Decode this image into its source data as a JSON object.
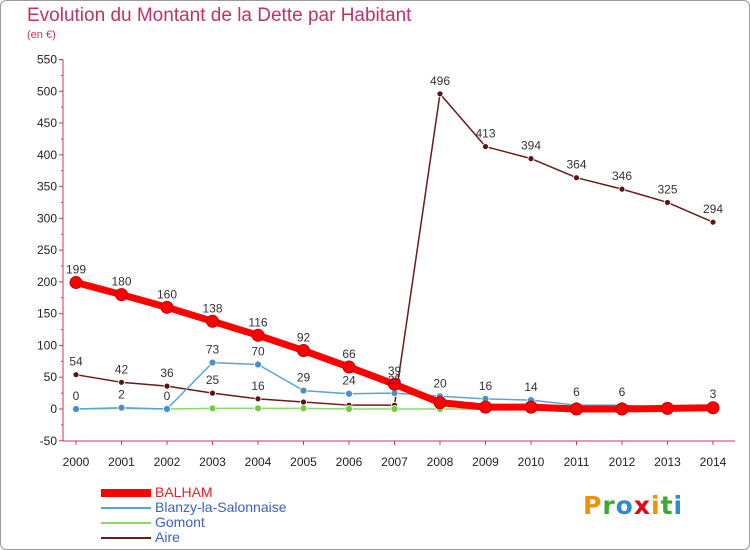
{
  "chart_data": {
    "type": "line",
    "title": "Evolution du Montant de la Dette par Habitant",
    "subtitle": "(en €)",
    "categories": [
      "2000",
      "2001",
      "2002",
      "2003",
      "2004",
      "2005",
      "2006",
      "2007",
      "2008",
      "2009",
      "2010",
      "2011",
      "2012",
      "2013",
      "2014"
    ],
    "ylim": [
      -50,
      550
    ],
    "yticks": [
      -50,
      0,
      50,
      100,
      150,
      200,
      250,
      300,
      350,
      400,
      450,
      500,
      550
    ],
    "grid": false,
    "legend_position": "bottom-left",
    "series": [
      {
        "name": "BALHAM",
        "color": "#ff0000",
        "values": [
          199,
          180,
          160,
          138,
          116,
          92,
          66,
          39,
          10,
          3,
          3,
          0,
          0,
          1,
          2
        ],
        "labels": [
          "199",
          "180",
          "160",
          "138",
          "116",
          "92",
          "66",
          "39",
          "",
          "",
          "",
          "",
          "",
          "",
          ""
        ]
      },
      {
        "name": "Blanzy-la-Salonnaise",
        "color": "#5ba4d4",
        "values": [
          0,
          2,
          0,
          73,
          70,
          29,
          24,
          25,
          20,
          16,
          14,
          6,
          6,
          2,
          3
        ],
        "labels": [
          "0",
          "2",
          "0",
          "73",
          "70",
          "29",
          "24",
          "25",
          "20",
          "16",
          "14",
          "6",
          "6",
          "",
          "3"
        ]
      },
      {
        "name": "Gomont",
        "color": "#88d86b",
        "values": [
          0,
          1,
          0,
          1,
          1,
          1,
          0,
          0,
          0,
          0,
          0,
          0,
          0,
          0,
          0
        ],
        "labels": [
          "",
          "",
          "",
          "",
          "",
          "",
          "",
          "",
          "",
          "",
          "",
          "",
          "",
          "",
          ""
        ]
      },
      {
        "name": "Aire",
        "color": "#6b1a1a",
        "values": [
          54,
          42,
          36,
          25,
          16,
          11,
          6,
          6,
          496,
          413,
          394,
          364,
          346,
          325,
          294
        ],
        "labels": [
          "54",
          "42",
          "36",
          "25",
          "16",
          "",
          "",
          "",
          "496",
          "413",
          "394",
          "364",
          "346",
          "325",
          "294"
        ]
      }
    ]
  },
  "brand": {
    "letters": [
      "P",
      "r",
      "o",
      "x",
      "i",
      "t",
      "i"
    ],
    "colors": [
      "#f39200",
      "#3aaa35",
      "#2e8bcc",
      "#e30613",
      "#f39200",
      "#3aaa35",
      "#2e8bcc"
    ]
  }
}
